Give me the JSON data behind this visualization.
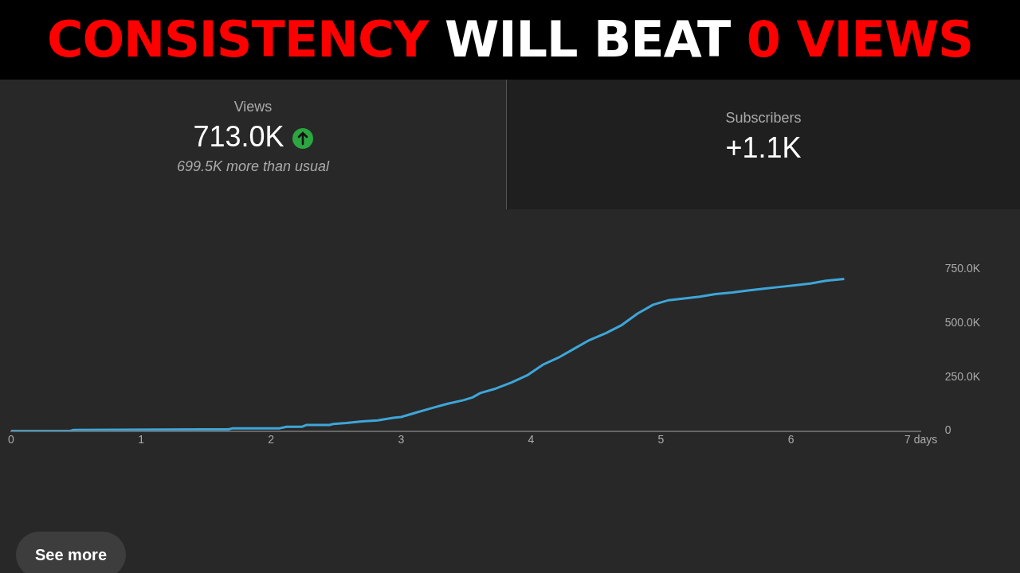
{
  "chart_data": {
    "type": "line",
    "title": "CONSISTENCY WILL BEAT 0 VIEWS",
    "annotations": [
      "Views",
      "713.0K",
      "699.5K more than usual",
      "Subscribers",
      "+1.1K",
      "See more"
    ],
    "series": [
      {
        "color": "#3ea6d9",
        "x": [
          0,
          0.45,
          0.48,
          1.67,
          1.7,
          2.06,
          2.12,
          2.24,
          2.27,
          2.45,
          2.48,
          2.58,
          2.7,
          2.82,
          2.94,
          3.0,
          3.12,
          3.24,
          3.36,
          3.48,
          3.55,
          3.61,
          3.73,
          3.85,
          3.97,
          4.09,
          4.21,
          4.33,
          4.45,
          4.58,
          4.7,
          4.82,
          4.94,
          5.06,
          5.18,
          5.3,
          5.42,
          5.55,
          5.67,
          5.79,
          5.91,
          6.03,
          6.15,
          6.27,
          6.41
        ],
        "values": [
          0,
          0,
          5000,
          8000,
          12000,
          12000,
          20000,
          20000,
          28000,
          28000,
          33000,
          37000,
          45000,
          49000,
          61000,
          65000,
          86000,
          107000,
          127000,
          143000,
          156000,
          176000,
          197000,
          225000,
          258000,
          307000,
          340000,
          381000,
          422000,
          455000,
          492000,
          545000,
          586000,
          607000,
          615000,
          623000,
          635000,
          643000,
          652000,
          660000,
          668000,
          676000,
          684000,
          697000,
          705000
        ]
      }
    ],
    "xlim": [
      0,
      7
    ],
    "xticks": [
      0,
      1,
      2,
      3,
      4,
      5,
      6,
      {
        "value": 7,
        "label": "7 days"
      }
    ],
    "ylim": [
      0,
      750000
    ],
    "yticks": [
      0,
      {
        "value": 250000,
        "label": "250.0K"
      },
      {
        "value": 500000,
        "label": "500.0K"
      },
      {
        "value": 750000,
        "label": "750.0K"
      }
    ],
    "grid": false,
    "legend": false,
    "marker": "none",
    "line_style": "solid"
  }
}
